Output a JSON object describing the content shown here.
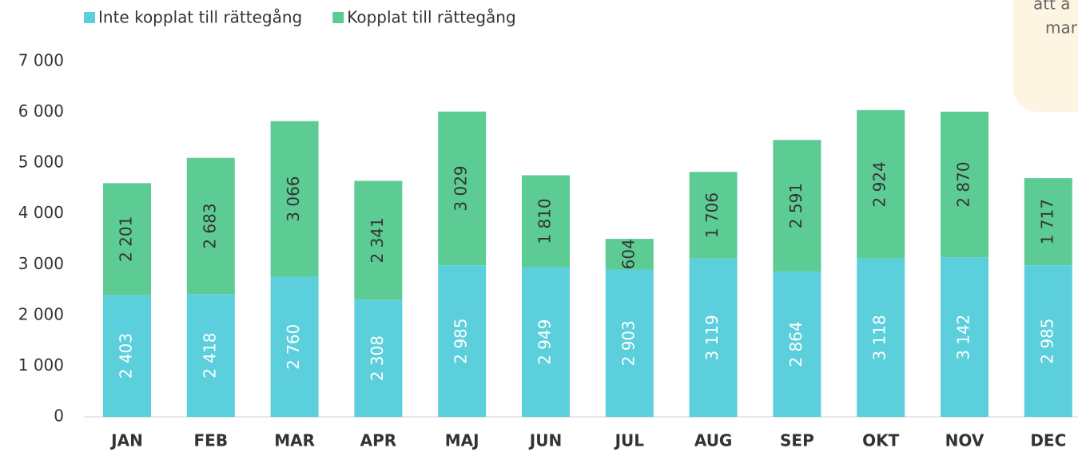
{
  "chart_data": {
    "type": "stacked_bar",
    "annotation": [
      "att a",
      "mar"
    ],
    "categories": [
      "JAN",
      "FEB",
      "MAR",
      "APR",
      "MAJ",
      "JUN",
      "JUL",
      "AUG",
      "SEP",
      "OKT",
      "NOV",
      "DEC"
    ],
    "series": [
      {
        "name": "Inte kopplat till rättegång",
        "color": "#5bcfdc",
        "values": [
          2403,
          2418,
          2760,
          2308,
          2985,
          2949,
          2903,
          3119,
          2864,
          3118,
          3142,
          2985
        ],
        "value_labels": [
          "2 403",
          "2 418",
          "2 760",
          "2 308",
          "2 985",
          "2 949",
          "2 903",
          "3 119",
          "2 864",
          "3 118",
          "3 142",
          "2 985"
        ]
      },
      {
        "name": "Kopplat till rättegång",
        "color": "#5dcb94",
        "values": [
          2201,
          2683,
          3066,
          2341,
          3029,
          1810,
          604,
          1706,
          2591,
          2924,
          2870,
          1717
        ],
        "value_labels": [
          "2 201",
          "2 683",
          "3 066",
          "2 341",
          "3 029",
          "1 810",
          "604",
          "1 706",
          "2 591",
          "2 924",
          "2 870",
          "1 717"
        ]
      }
    ],
    "ylim": [
      0,
      7000
    ],
    "yticks": [
      0,
      {
        "value": 1000,
        "label": "1 000"
      },
      {
        "value": 2000,
        "label": "2 000"
      },
      {
        "value": 3000,
        "label": "3 000"
      },
      {
        "value": 4000,
        "label": "4 000"
      },
      {
        "value": 5000,
        "label": "5 000"
      },
      {
        "value": 6000,
        "label": "6 000"
      },
      {
        "value": 7000,
        "label": "7 000"
      }
    ],
    "legend": "top-left"
  }
}
